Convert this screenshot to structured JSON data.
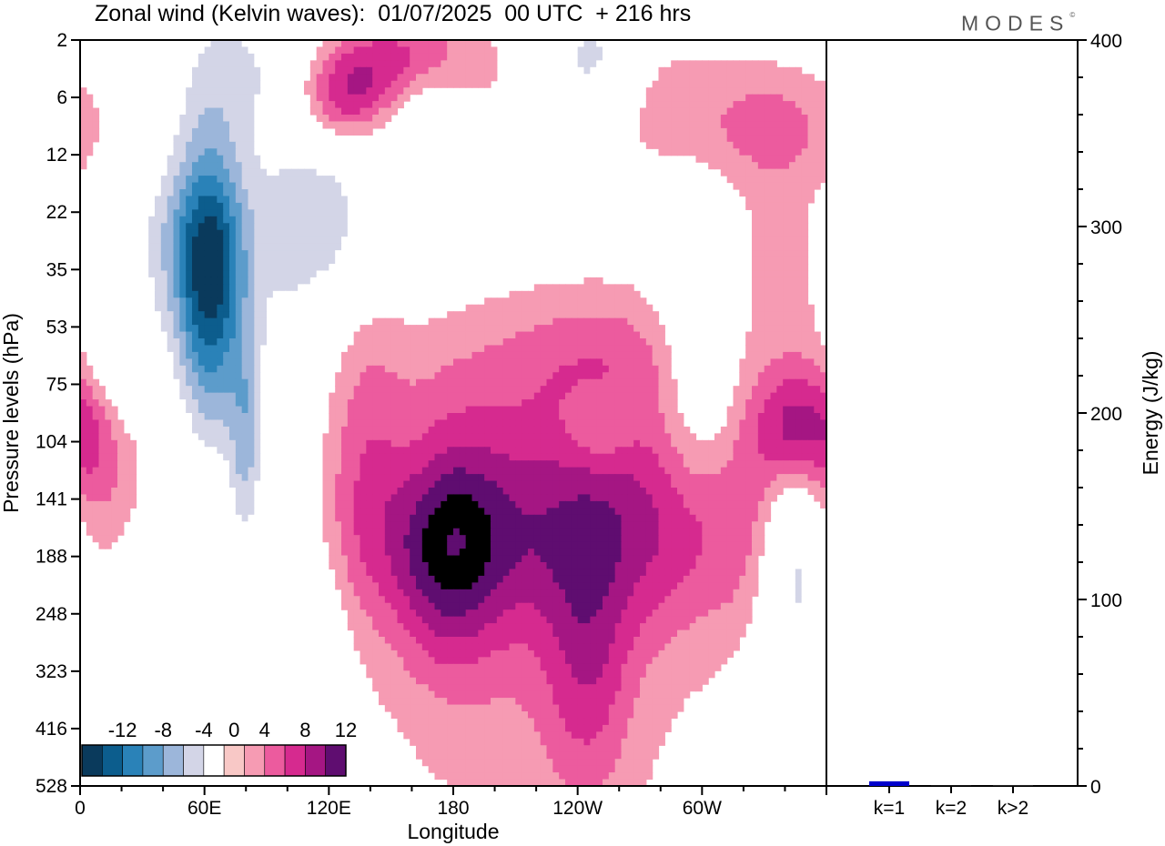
{
  "title": "Zonal wind (Kelvin waves):  01/07/2025  00 UTC  + 216 hrs",
  "logo": "MODES",
  "chart_data": [
    {
      "type": "heatmap",
      "title": "Zonal wind (Kelvin waves):  01/07/2025  00 UTC  + 216 hrs",
      "xlabel": "Longitude",
      "ylabel": "Pressure levels (hPa)",
      "x_ticks": [
        "0",
        "60E",
        "120E",
        "180",
        "120W",
        "60W"
      ],
      "x_tick_degrees": [
        0,
        60,
        120,
        180,
        240,
        300
      ],
      "xlim": [
        0,
        360
      ],
      "y_ticks": [
        "2",
        "6",
        "12",
        "22",
        "35",
        "53",
        "75",
        "104",
        "141",
        "188",
        "248",
        "323",
        "416",
        "528"
      ],
      "y_reversed": true,
      "colorbar": {
        "labels": [
          "-12",
          "-8",
          "-4",
          "0",
          "4",
          "8",
          "12"
        ],
        "levels": [
          -14,
          -12,
          -10,
          -8,
          -6,
          -4,
          -2,
          2,
          4,
          6,
          8,
          10,
          12,
          14
        ],
        "colors": [
          "#0a3a5c",
          "#0c5d8d",
          "#2a82b8",
          "#5c9ccb",
          "#9cb6da",
          "#d3d5e7",
          "#ffffff",
          "#f8c8c6",
          "#f69bb3",
          "#ec5b9e",
          "#d62a8f",
          "#a51683",
          "#5f0d70"
        ]
      },
      "blobs": [
        {
          "lon": 18,
          "lev": 5.7,
          "w": 14,
          "h": 0.9,
          "value": -7,
          "rot": 0
        },
        {
          "lon": 62,
          "lev": 4.3,
          "w": 12,
          "h": 1.8,
          "value": -12.5,
          "rot": 0
        },
        {
          "lon": 80,
          "lev": 7.2,
          "w": 6,
          "h": 1.4,
          "value": -6,
          "rot": 0
        },
        {
          "lon": 60,
          "lev": 6.2,
          "w": 34,
          "h": 4.0,
          "value": -3,
          "rot": 0
        },
        {
          "lon": 100,
          "lev": 7.6,
          "w": 12,
          "h": 4.0,
          "value": -2.5,
          "rot": 0
        },
        {
          "lon": 36,
          "lev": 9.6,
          "w": 16,
          "h": 1.2,
          "value": -2.5,
          "rot": 0
        },
        {
          "lon": 115,
          "lev": 10.6,
          "w": 10,
          "h": 2.0,
          "value": -2.5,
          "rot": 0
        },
        {
          "lon": 50,
          "lev": 3.4,
          "w": 30,
          "h": 0.9,
          "value": -2.5,
          "rot": 0
        },
        {
          "lon": 118,
          "lev": 3.4,
          "w": 14,
          "h": 0.9,
          "value": -2.5,
          "rot": 0
        },
        {
          "lon": 120,
          "lev": 2.4,
          "w": 20,
          "h": 1.3,
          "value": -3,
          "rot": 0
        },
        {
          "lon": 82,
          "lev": 0.5,
          "w": 25,
          "h": 1.0,
          "value": -4,
          "rot": 0
        },
        {
          "lon": 167,
          "lev": 1.2,
          "w": 15,
          "h": 0.7,
          "value": -6,
          "rot": 0
        },
        {
          "lon": 165,
          "lev": 1.2,
          "w": 30,
          "h": 1.8,
          "value": -2.5,
          "rot": 0
        },
        {
          "lon": 247,
          "lev": 0.4,
          "w": 15,
          "h": 0.8,
          "value": -6,
          "rot": 0
        },
        {
          "lon": 300,
          "lev": 5.7,
          "w": 14,
          "h": 1.9,
          "value": -5,
          "rot": 0
        },
        {
          "lon": 345,
          "lev": 8.7,
          "w": 12,
          "h": 1.4,
          "value": -6.5,
          "rot": 0
        },
        {
          "lon": 345,
          "lev": 9.4,
          "w": 14,
          "h": 2.4,
          "value": -2.5,
          "rot": 0
        },
        {
          "lon": 250,
          "lev": 6.8,
          "w": 12,
          "h": 0.5,
          "value": -2.5,
          "rot": 0
        },
        {
          "lon": 178,
          "lev": 8.7,
          "w": 18,
          "h": 1.5,
          "value": 7,
          "rot": 0
        },
        {
          "lon": 250,
          "lev": 8.5,
          "w": 110,
          "h": 1.3,
          "value": 5,
          "rot": 0
        },
        {
          "lon": 345,
          "lev": 6.8,
          "w": 14,
          "h": 0.8,
          "value": 8,
          "rot": 0
        },
        {
          "lon": 240,
          "lev": 7.2,
          "w": 165,
          "h": 2.0,
          "value": 3,
          "rot": 0
        },
        {
          "lon": 220,
          "lev": 10.9,
          "w": 60,
          "h": 3.0,
          "value": 3,
          "rot": 0
        },
        {
          "lon": 245,
          "lev": 10.9,
          "w": 15,
          "h": 1.7,
          "value": 4.5,
          "rot": 0
        },
        {
          "lon": 250,
          "lev": 5.5,
          "w": 40,
          "h": 0.8,
          "value": 3,
          "rot": 0
        },
        {
          "lon": 140,
          "lev": 6.8,
          "w": 12,
          "h": 1.6,
          "value": 2.5,
          "rot": 0
        },
        {
          "lon": 8,
          "lev": 6.5,
          "w": 12,
          "h": 1.0,
          "value": 4,
          "rot": 0
        },
        {
          "lon": 28,
          "lev": 6.0,
          "w": 22,
          "h": 1.0,
          "value": 2.5,
          "rot": 0
        },
        {
          "lon": 145,
          "lev": 0.9,
          "w": 45,
          "h": 1.3,
          "value": 3,
          "rot": 0
        },
        {
          "lon": 160,
          "lev": 0.5,
          "w": 25,
          "h": 0.7,
          "value": 8,
          "rot": 0
        },
        {
          "lon": 125,
          "lev": 1.0,
          "w": 16,
          "h": 0.6,
          "value": 6,
          "rot": 0
        },
        {
          "lon": 335,
          "lev": 1.5,
          "w": 30,
          "h": 0.8,
          "value": 4.5,
          "rot": 0
        },
        {
          "lon": 340,
          "lev": 3.8,
          "w": 22,
          "h": 1.2,
          "value": 2.5,
          "rot": 0
        },
        {
          "lon": 270,
          "lev": 1.0,
          "w": 30,
          "h": 1.0,
          "value": 2.5,
          "rot": 0
        },
        {
          "lon": 168,
          "lev": 7.4,
          "w": 25,
          "h": 0.9,
          "value": -2.5,
          "rot": 0
        }
      ],
      "energy": {
        "ylabel": "Energy (J/kg)",
        "y_ticks": [
          "0",
          "100",
          "200",
          "300",
          "400"
        ],
        "ylim": [
          0,
          400
        ],
        "categories": [
          "k=1",
          "k=2",
          "k>2"
        ],
        "values": [
          2.5,
          0.3,
          0.5
        ],
        "bar_color": "#0000cc"
      }
    }
  ]
}
